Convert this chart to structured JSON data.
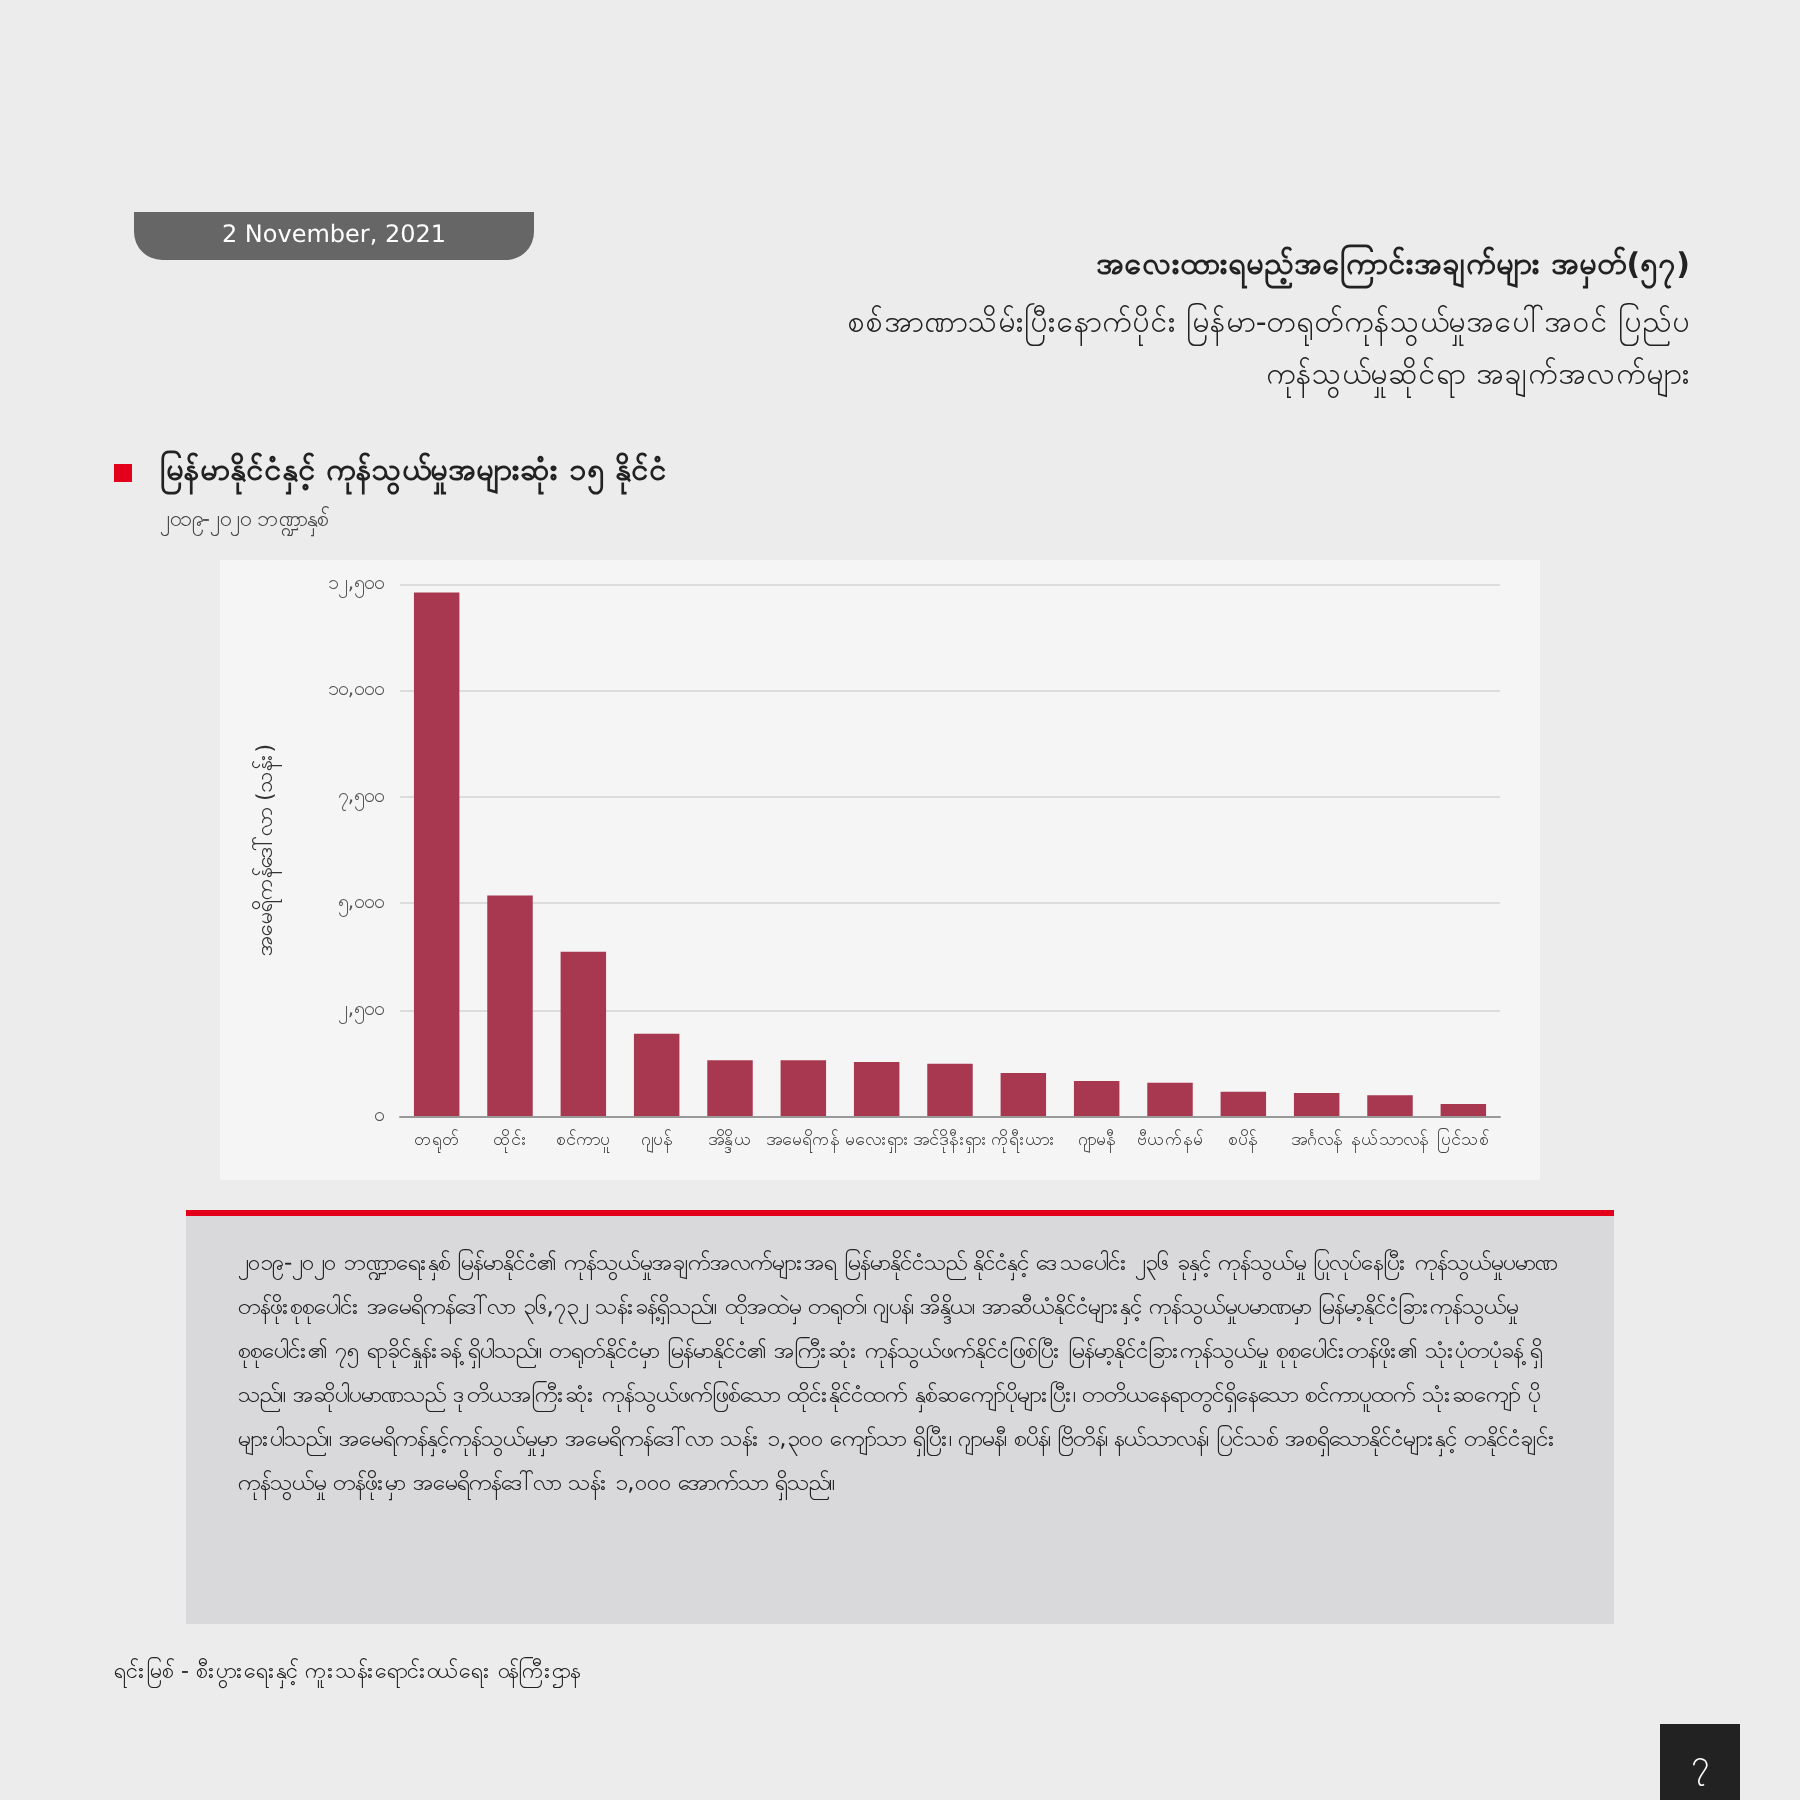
{
  "chart_data": {
    "type": "bar",
    "title": "မြန်မာနိုင်ငံနှင့် ကုန်သွယ်မှုအများဆုံး ၁၅ နိုင်ငံ",
    "subtitle": "၂၀၁၉-၂၀၂၀ ဘဏ္ဍာနှစ်",
    "ylabel": "အမေရိကန်ဒေါ်လာ (သန်း)",
    "categories": [
      "တရုတ်",
      "ထိုင်း",
      "စင်ကာပူ",
      "ဂျပန်",
      "အိန္ဒိယ",
      "အမေရိကန်",
      "မလေးရှား",
      "အင်ဒိုနီးရှား",
      "ကိုရီးယား",
      "ဂျာမနီ",
      "ဗီယက်နမ်",
      "စပိန်",
      "အင်္ဂလန်",
      "နယ်သာလန်",
      "ပြင်သစ်"
    ],
    "values": [
      12300,
      5180,
      3860,
      1930,
      1310,
      1310,
      1270,
      1230,
      1010,
      820,
      780,
      570,
      540,
      490,
      280
    ],
    "color": "#a8384f",
    "ylim": [
      0,
      12500
    ],
    "yticks": [
      {
        "value": 0,
        "label": "၀"
      },
      {
        "value": 2500,
        "label": "၂,၅၀၀"
      },
      {
        "value": 5000,
        "label": "၅,၀၀၀"
      },
      {
        "value": 7500,
        "label": "၇,၅၀၀"
      },
      {
        "value": 10000,
        "label": "၁၀,၀၀၀"
      },
      {
        "value": 12500,
        "label": "၁၂,၅၀၀"
      }
    ],
    "grid": "y",
    "annotations": [
      "2 November, 2021",
      "အလေးထားရမည့်အကြောင်းအချက်များ အမှတ်(၅၇)",
      "စစ်အာဏာသိမ်းပြီးနောက်ပိုင်း မြန်မာ-တရုတ်ကုန်သွယ်မှုအပေါ်အဝင် ပြည်ပကုန်သွယ်မှုဆိုင်ရာ အချက်အလက်များ",
      "၂၀၁၉-၂၀၂၀ ဘဏ္ဍာရေးနှစ် မြန်မာနိုင်ငံ၏ ကုန်သွယ်မှုအချက်အလက်များအရ မြန်မာနိုင်ငံသည် နိုင်ငံနှင့် ဒေသပေါင်း ၂၃၆ ခုနှင့် ကုန်သွယ်မှု ပြုလုပ်နေပြီး ကုန်သွယ်မှုပမာဏတန်ဖိုးစုစုပေါင်း အမေရိကန်ဒေါ်လာ ၃၆,၇၃၂ သန်းခန့်ရှိသည်။ ထိုအထဲမှ တရုတ်၊ ဂျပန်၊ အိန္ဒိယ၊ အာဆီယံနိုင်ငံများနှင့် ကုန်သွယ်မှုပမာဏမှာ မြန်မာ့နိုင်ငံခြားကုန်သွယ်မှုစုစုပေါင်း၏ ၇၅ ရာခိုင်နှုန်းခန့် ရှိပါသည်။ တရုတ်နိုင်ငံမှာ မြန်မာနိုင်ငံ၏ အကြီးဆုံး ကုန်သွယ်ဖက်နိုင်ငံဖြစ်ပြီး မြန်မာ့နိုင်ငံခြားကုန်သွယ်မှု စုစုပေါင်းတန်ဖိုး၏ သုံးပုံတပုံခန့် ရှိသည်။ အဆိုပါပမာဏသည် ဒုတိယအကြီးဆုံး ကုန်သွယ်ဖက်ဖြစ်သော ထိုင်းနိုင်ငံထက် နှစ်ဆကျော်ပိုများပြီး၊ တတိယနေရာတွင်ရှိနေသော စင်ကာပူထက် သုံးဆကျော် ပိုများပါသည်။ အမေရိကန်နှင့်ကုန်သွယ်မှုမှာ အမေရိကန်ဒေါ်လာ သန်း ၁,၃၀၀ ကျော်သာ ရှိပြီး၊ ဂျာမနီ၊ စပိန်၊ ဗြိတိန်၊ နယ်သာလန်၊ ပြင်သစ် အစရှိသောနိုင်ငံများနှင့် တနိုင်ငံချင်း ကုန်သွယ်မှု တန်ဖိုးမှာ အမေရိကန်ဒေါ်လာ သန်း ၁,၀၀၀ အောက်သာ ရှိသည်။",
      "ရင်းမြစ် - စီးပွားရေးနှင့် ကူးသန်းရောင်းဝယ်ရေး ဝန်ကြီးဌာန",
      "၇"
    ]
  }
}
